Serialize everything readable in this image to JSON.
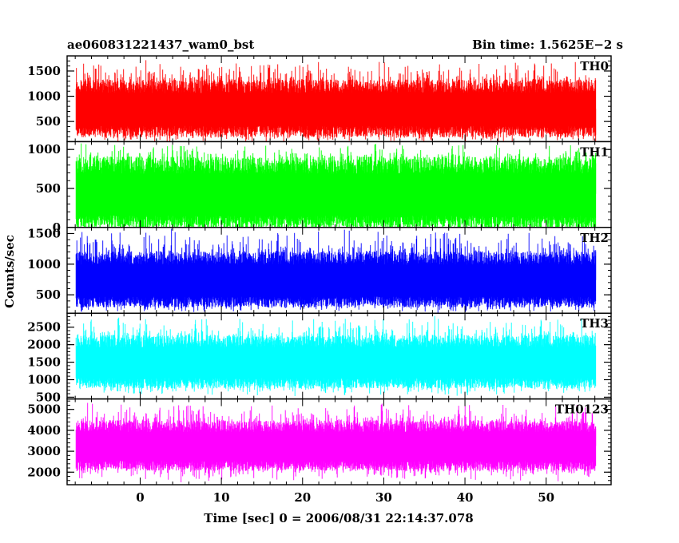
{
  "header": {
    "title": "ae060831221437_wam0_bst",
    "bin_time": "Bin time: 1.5625E−2 s"
  },
  "axes": {
    "ylabel": "Counts/sec",
    "xlabel": "Time [sec] 0 = 2006/08/31 22:14:37.078"
  },
  "chart_data": {
    "type": "line",
    "title": "ae060831221437_wam0_bst",
    "xlabel": "Time [sec] 0 = 2006/08/31 22:14:37.078",
    "ylabel": "Counts/sec",
    "xlim": [
      -9,
      58
    ],
    "x_range": [
      -7.9,
      56.1
    ],
    "bin_time_s": 0.015625,
    "x_ticks": [
      0,
      10,
      20,
      30,
      40,
      50
    ],
    "grid": false,
    "legend": "none",
    "series": [
      {
        "name": "TH0",
        "color": "#ff0000",
        "ylim": [
          100,
          1800
        ],
        "y_ticks": [
          500,
          1000,
          1500
        ],
        "typical_low": 300,
        "typical_high": 1200,
        "min": 50,
        "max": 1750
      },
      {
        "name": "TH1",
        "color": "#00ff00",
        "ylim": [
          0,
          1100
        ],
        "y_ticks": [
          0,
          500,
          1000
        ],
        "typical_low": 60,
        "typical_high": 800,
        "min": 0,
        "max": 1100
      },
      {
        "name": "TH2",
        "color": "#0000ff",
        "ylim": [
          200,
          1600
        ],
        "y_ticks": [
          500,
          1000,
          1500
        ],
        "typical_low": 380,
        "typical_high": 1100,
        "min": 200,
        "max": 1600
      },
      {
        "name": "TH3",
        "color": "#00ffff",
        "ylim": [
          450,
          2900
        ],
        "y_ticks": [
          500,
          1000,
          1500,
          2000,
          2500
        ],
        "typical_low": 900,
        "typical_high": 2100,
        "min": 500,
        "max": 2850
      },
      {
        "name": "TH0123",
        "color": "#ff00ff",
        "ylim": [
          1400,
          5500
        ],
        "y_ticks": [
          2000,
          3000,
          4000,
          5000
        ],
        "typical_low": 2300,
        "typical_high": 4200,
        "min": 1500,
        "max": 5400
      }
    ]
  }
}
